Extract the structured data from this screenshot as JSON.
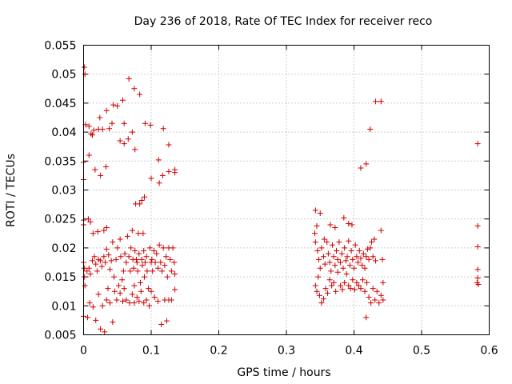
{
  "chart_data": {
    "type": "scatter",
    "title": "Day 236 of 2018, Rate Of TEC Index for receiver reco",
    "xlabel": "GPS time / hours",
    "ylabel": "ROTI / TECUs",
    "xlim": [
      0,
      0.6
    ],
    "ylim": [
      0.005,
      0.055
    ],
    "xticks": [
      0,
      0.1,
      0.2,
      0.3,
      0.4,
      0.5,
      0.6
    ],
    "xtick_labels": [
      "0",
      "0.1",
      "0.2",
      "0.3",
      "0.4",
      "0.5",
      "0.6"
    ],
    "yticks": [
      0.005,
      0.01,
      0.015,
      0.02,
      0.025,
      0.03,
      0.035,
      0.04,
      0.045,
      0.05,
      0.055
    ],
    "ytick_labels": [
      "0.005",
      "0.01",
      "0.015",
      "0.02",
      "0.025",
      "0.03",
      "0.035",
      "0.04",
      "0.045",
      "0.05",
      "0.055"
    ],
    "grid": true,
    "marker": "plus",
    "color": "#cc0000",
    "series": [
      {
        "name": "ROTI",
        "points": [
          [
            0.001,
            0.0512
          ],
          [
            0.002,
            0.05
          ],
          [
            0.003,
            0.0413
          ],
          [
            0.008,
            0.041
          ],
          [
            0.013,
            0.0395
          ],
          [
            0.015,
            0.0403
          ],
          [
            0.022,
            0.0405
          ],
          [
            0.024,
            0.0425
          ],
          [
            0.028,
            0.0405
          ],
          [
            0.034,
            0.0437
          ],
          [
            0.038,
            0.0406
          ],
          [
            0.042,
            0.0415
          ],
          [
            0.044,
            0.0447
          ],
          [
            0.05,
            0.0445
          ],
          [
            0.054,
            0.0385
          ],
          [
            0.058,
            0.0455
          ],
          [
            0.06,
            0.0415
          ],
          [
            0.06,
            0.038
          ],
          [
            0.066,
            0.0388
          ],
          [
            0.067,
            0.0492
          ],
          [
            0.072,
            0.04
          ],
          [
            0.075,
            0.0475
          ],
          [
            0.076,
            0.037
          ],
          [
            0.083,
            0.0465
          ],
          [
            0.091,
            0.0415
          ],
          [
            0.099,
            0.0412
          ],
          [
            0.118,
            0.0406
          ],
          [
            0.126,
            0.0378
          ],
          [
            0.0,
            0.0348
          ],
          [
            0.0,
            0.0318
          ],
          [
            0.008,
            0.036
          ],
          [
            0.011,
            0.0397
          ],
          [
            0.017,
            0.0335
          ],
          [
            0.025,
            0.0325
          ],
          [
            0.033,
            0.034
          ],
          [
            0.1,
            0.032
          ],
          [
            0.111,
            0.0352
          ],
          [
            0.112,
            0.0312
          ],
          [
            0.117,
            0.0325
          ],
          [
            0.126,
            0.0332
          ],
          [
            0.135,
            0.0335
          ],
          [
            0.135,
            0.033
          ],
          [
            0.09,
            0.0288
          ],
          [
            0.086,
            0.0282
          ],
          [
            0.077,
            0.0276
          ],
          [
            0.083,
            0.0276
          ],
          [
            0.0,
            0.0248
          ],
          [
            0.0,
            0.024
          ],
          [
            0.007,
            0.025
          ],
          [
            0.01,
            0.0245
          ],
          [
            0.014,
            0.0225
          ],
          [
            0.021,
            0.0228
          ],
          [
            0.03,
            0.023
          ],
          [
            0.034,
            0.0235
          ],
          [
            0.0,
            0.0175
          ],
          [
            0.001,
            0.0165
          ],
          [
            0.001,
            0.015
          ],
          [
            0.002,
            0.0135
          ],
          [
            0.005,
            0.016
          ],
          [
            0.008,
            0.0165
          ],
          [
            0.01,
            0.0155
          ],
          [
            0.013,
            0.0178
          ],
          [
            0.016,
            0.0185
          ],
          [
            0.018,
            0.0172
          ],
          [
            0.02,
            0.016
          ],
          [
            0.022,
            0.018
          ],
          [
            0.025,
            0.0178
          ],
          [
            0.027,
            0.0168
          ],
          [
            0.03,
            0.0185
          ],
          [
            0.032,
            0.0175
          ],
          [
            0.034,
            0.0198
          ],
          [
            0.037,
            0.0188
          ],
          [
            0.039,
            0.0163
          ],
          [
            0.041,
            0.0178
          ],
          [
            0.043,
            0.021
          ],
          [
            0.045,
            0.015
          ],
          [
            0.048,
            0.018
          ],
          [
            0.05,
            0.02
          ],
          [
            0.052,
            0.0135
          ],
          [
            0.054,
            0.0215
          ],
          [
            0.055,
            0.0185
          ],
          [
            0.057,
            0.0145
          ],
          [
            0.059,
            0.016
          ],
          [
            0.06,
            0.013
          ],
          [
            0.061,
            0.019
          ],
          [
            0.063,
            0.0175
          ],
          [
            0.065,
            0.022
          ],
          [
            0.067,
            0.0185
          ],
          [
            0.069,
            0.016
          ],
          [
            0.07,
            0.02
          ],
          [
            0.072,
            0.023
          ],
          [
            0.073,
            0.018
          ],
          [
            0.074,
            0.0165
          ],
          [
            0.075,
            0.0135
          ],
          [
            0.076,
            0.0195
          ],
          [
            0.078,
            0.018
          ],
          [
            0.079,
            0.0175
          ],
          [
            0.08,
            0.016
          ],
          [
            0.081,
            0.0225
          ],
          [
            0.082,
            0.019
          ],
          [
            0.084,
            0.014
          ],
          [
            0.086,
            0.018
          ],
          [
            0.087,
            0.017
          ],
          [
            0.088,
            0.0225
          ],
          [
            0.089,
            0.0195
          ],
          [
            0.09,
            0.015
          ],
          [
            0.091,
            0.0175
          ],
          [
            0.093,
            0.0185
          ],
          [
            0.094,
            0.016
          ],
          [
            0.096,
            0.013
          ],
          [
            0.098,
            0.02
          ],
          [
            0.1,
            0.0175
          ],
          [
            0.101,
            0.018
          ],
          [
            0.102,
            0.016
          ],
          [
            0.104,
            0.0195
          ],
          [
            0.106,
            0.0175
          ],
          [
            0.108,
            0.019
          ],
          [
            0.11,
            0.0165
          ],
          [
            0.112,
            0.0205
          ],
          [
            0.114,
            0.0175
          ],
          [
            0.116,
            0.016
          ],
          [
            0.118,
            0.02
          ],
          [
            0.12,
            0.017
          ],
          [
            0.122,
            0.0185
          ],
          [
            0.124,
            0.015
          ],
          [
            0.126,
            0.02
          ],
          [
            0.128,
            0.018
          ],
          [
            0.13,
            0.016
          ],
          [
            0.132,
            0.02
          ],
          [
            0.134,
            0.0175
          ],
          [
            0.135,
            0.0155
          ],
          [
            0.0,
            0.0082
          ],
          [
            0.006,
            0.008
          ],
          [
            0.009,
            0.0105
          ],
          [
            0.014,
            0.0098
          ],
          [
            0.018,
            0.0075
          ],
          [
            0.022,
            0.012
          ],
          [
            0.025,
            0.006
          ],
          [
            0.028,
            0.01
          ],
          [
            0.031,
            0.0055
          ],
          [
            0.034,
            0.011
          ],
          [
            0.036,
            0.013
          ],
          [
            0.039,
            0.0105
          ],
          [
            0.043,
            0.0072
          ],
          [
            0.046,
            0.0125
          ],
          [
            0.049,
            0.011
          ],
          [
            0.054,
            0.0122
          ],
          [
            0.058,
            0.0108
          ],
          [
            0.063,
            0.011
          ],
          [
            0.068,
            0.0105
          ],
          [
            0.072,
            0.012
          ],
          [
            0.075,
            0.0105
          ],
          [
            0.079,
            0.0115
          ],
          [
            0.082,
            0.0108
          ],
          [
            0.085,
            0.0125
          ],
          [
            0.089,
            0.0105
          ],
          [
            0.093,
            0.011
          ],
          [
            0.097,
            0.01
          ],
          [
            0.1,
            0.0125
          ],
          [
            0.105,
            0.0115
          ],
          [
            0.11,
            0.0108
          ],
          [
            0.115,
            0.0068
          ],
          [
            0.12,
            0.011
          ],
          [
            0.123,
            0.0074
          ],
          [
            0.126,
            0.011
          ],
          [
            0.13,
            0.011
          ],
          [
            0.135,
            0.0128
          ],
          [
            0.343,
            0.0265
          ],
          [
            0.35,
            0.026
          ],
          [
            0.345,
            0.0238
          ],
          [
            0.342,
            0.0225
          ],
          [
            0.356,
            0.0215
          ],
          [
            0.365,
            0.024
          ],
          [
            0.372,
            0.0235
          ],
          [
            0.385,
            0.0252
          ],
          [
            0.392,
            0.0242
          ],
          [
            0.397,
            0.024
          ],
          [
            0.343,
            0.021
          ],
          [
            0.346,
            0.0195
          ],
          [
            0.348,
            0.018
          ],
          [
            0.35,
            0.0165
          ],
          [
            0.352,
            0.02
          ],
          [
            0.355,
            0.0185
          ],
          [
            0.357,
            0.0172
          ],
          [
            0.36,
            0.021
          ],
          [
            0.362,
            0.019
          ],
          [
            0.364,
            0.0175
          ],
          [
            0.366,
            0.016
          ],
          [
            0.368,
            0.0205
          ],
          [
            0.37,
            0.0185
          ],
          [
            0.372,
            0.017
          ],
          [
            0.374,
            0.0195
          ],
          [
            0.376,
            0.018
          ],
          [
            0.378,
            0.021
          ],
          [
            0.38,
            0.0175
          ],
          [
            0.382,
            0.019
          ],
          [
            0.384,
            0.0165
          ],
          [
            0.386,
            0.02
          ],
          [
            0.388,
            0.0178
          ],
          [
            0.39,
            0.0185
          ],
          [
            0.392,
            0.0212
          ],
          [
            0.394,
            0.017
          ],
          [
            0.396,
            0.0195
          ],
          [
            0.398,
            0.018
          ],
          [
            0.4,
            0.0165
          ],
          [
            0.402,
            0.0205
          ],
          [
            0.404,
            0.0185
          ],
          [
            0.406,
            0.0175
          ],
          [
            0.408,
            0.0195
          ],
          [
            0.41,
            0.0182
          ],
          [
            0.412,
            0.017
          ],
          [
            0.414,
            0.019
          ],
          [
            0.416,
            0.0165
          ],
          [
            0.418,
            0.0185
          ],
          [
            0.42,
            0.0198
          ],
          [
            0.422,
            0.018
          ],
          [
            0.424,
            0.02
          ],
          [
            0.426,
            0.021
          ],
          [
            0.428,
            0.0185
          ],
          [
            0.43,
            0.0215
          ],
          [
            0.432,
            0.0178
          ],
          [
            0.44,
            0.023
          ],
          [
            0.442,
            0.018
          ],
          [
            0.343,
            0.0135
          ],
          [
            0.345,
            0.0125
          ],
          [
            0.347,
            0.015
          ],
          [
            0.349,
            0.0118
          ],
          [
            0.352,
            0.0105
          ],
          [
            0.355,
            0.0112
          ],
          [
            0.358,
            0.013
          ],
          [
            0.361,
            0.0122
          ],
          [
            0.364,
            0.0145
          ],
          [
            0.367,
            0.0135
          ],
          [
            0.37,
            0.014
          ],
          [
            0.373,
            0.0125
          ],
          [
            0.376,
            0.0158
          ],
          [
            0.38,
            0.0135
          ],
          [
            0.383,
            0.0128
          ],
          [
            0.386,
            0.014
          ],
          [
            0.389,
            0.0155
          ],
          [
            0.392,
            0.0135
          ],
          [
            0.395,
            0.013
          ],
          [
            0.398,
            0.0145
          ],
          [
            0.401,
            0.0128
          ],
          [
            0.404,
            0.014
          ],
          [
            0.407,
            0.0135
          ],
          [
            0.41,
            0.013
          ],
          [
            0.413,
            0.0145
          ],
          [
            0.416,
            0.0125
          ],
          [
            0.419,
            0.014
          ],
          [
            0.422,
            0.0115
          ],
          [
            0.425,
            0.0105
          ],
          [
            0.428,
            0.013
          ],
          [
            0.431,
            0.011
          ],
          [
            0.434,
            0.0125
          ],
          [
            0.437,
            0.0105
          ],
          [
            0.44,
            0.0118
          ],
          [
            0.443,
            0.011
          ],
          [
            0.418,
            0.008
          ],
          [
            0.443,
            0.014
          ],
          [
            0.41,
            0.0338
          ],
          [
            0.418,
            0.0345
          ],
          [
            0.424,
            0.0405
          ],
          [
            0.432,
            0.0453
          ],
          [
            0.44,
            0.0453
          ],
          [
            0.583,
            0.038
          ],
          [
            0.583,
            0.0238
          ],
          [
            0.583,
            0.0202
          ],
          [
            0.583,
            0.0163
          ],
          [
            0.583,
            0.0148
          ],
          [
            0.582,
            0.014
          ],
          [
            0.584,
            0.0137
          ]
        ]
      }
    ]
  }
}
